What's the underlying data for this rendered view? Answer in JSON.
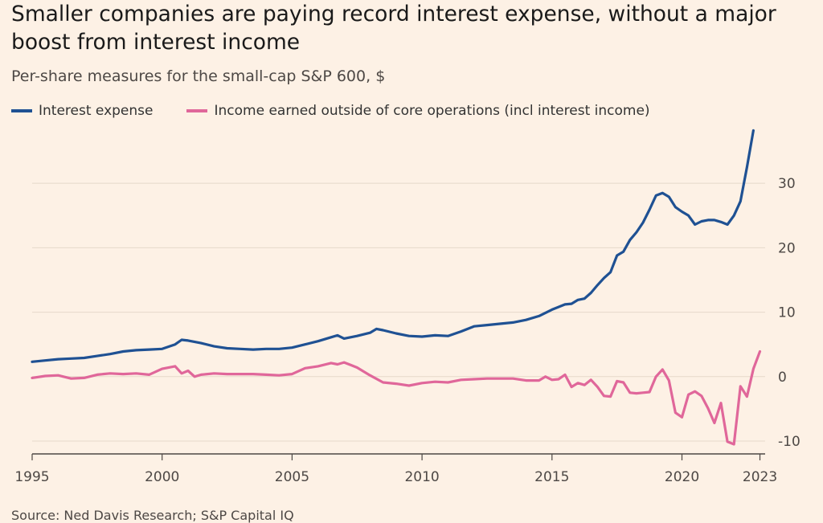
{
  "header": {
    "title": "Smaller companies are paying record interest expense, without a major boost from interest income",
    "subtitle": "Per-share measures for the small-cap S&P 600, $"
  },
  "footer": {
    "source": "Source: Ned Davis Research; S&P Capital IQ"
  },
  "colors": {
    "background": "#fdf1e5",
    "interest_expense": "#1f5193",
    "other_income": "#e0679a",
    "grid": "#e6d9ca",
    "axis": "#4d4845"
  },
  "chart_data": {
    "type": "line",
    "title": "Smaller companies are paying record interest expense, without a major boost from interest income",
    "subtitle": "Per-share measures for the small-cap S&P 600, $",
    "xlabel": "",
    "ylabel": "",
    "xlim": [
      1995,
      2023.2
    ],
    "ylim": [
      -12,
      38.5
    ],
    "yticks": [
      -10,
      0,
      10,
      20,
      30
    ],
    "xticks": [
      "1995",
      "2000",
      "2005",
      "2010",
      "2015",
      "2020",
      "2023"
    ],
    "grid": true,
    "legend_position": "top-left",
    "series": [
      {
        "name": "Interest expense",
        "color": "#1f5193",
        "x": [
          1995.0,
          1995.5,
          1996.0,
          1996.5,
          1997.0,
          1997.5,
          1998.0,
          1998.5,
          1999.0,
          1999.5,
          2000.0,
          2000.5,
          2000.75,
          2001.0,
          2001.5,
          2002.0,
          2002.5,
          2003.0,
          2003.5,
          2004.0,
          2004.5,
          2005.0,
          2005.5,
          2006.0,
          2006.5,
          2006.75,
          2007.0,
          2007.5,
          2008.0,
          2008.25,
          2008.5,
          2009.0,
          2009.5,
          2010.0,
          2010.5,
          2011.0,
          2011.5,
          2012.0,
          2012.5,
          2013.0,
          2013.5,
          2014.0,
          2014.5,
          2015.0,
          2015.5,
          2015.75,
          2016.0,
          2016.25,
          2016.5,
          2016.75,
          2017.0,
          2017.25,
          2017.5,
          2017.75,
          2018.0,
          2018.25,
          2018.5,
          2018.75,
          2019.0,
          2019.25,
          2019.5,
          2019.75,
          2020.0,
          2020.25,
          2020.5,
          2020.75,
          2021.0,
          2021.25,
          2021.5,
          2021.75,
          2022.0,
          2022.25,
          2022.5,
          2022.75,
          2023.0,
          2023.25
        ],
        "values": [
          2.3,
          2.5,
          2.7,
          2.8,
          2.9,
          3.2,
          3.5,
          3.9,
          4.1,
          4.2,
          4.3,
          5.0,
          5.7,
          5.6,
          5.2,
          4.7,
          4.4,
          4.3,
          4.2,
          4.3,
          4.3,
          4.5,
          5.0,
          5.5,
          6.1,
          6.4,
          5.9,
          6.3,
          6.8,
          7.4,
          7.2,
          6.7,
          6.3,
          6.2,
          6.4,
          6.3,
          7.0,
          7.8,
          8.0,
          8.2,
          8.4,
          8.8,
          9.4,
          10.4,
          11.2,
          11.3,
          11.9,
          12.1,
          13.0,
          14.2,
          15.3,
          16.2,
          18.8,
          19.4,
          21.2,
          22.4,
          23.9,
          25.9,
          28.1,
          28.5,
          27.9,
          26.3,
          25.6,
          25.0,
          23.6,
          24.1,
          24.3,
          24.3,
          24.0,
          23.6,
          25.0,
          27.2,
          32.5,
          38.2,
          null,
          null
        ]
      },
      {
        "name": "Income earned outside of core operations (incl interest income)",
        "color": "#e0679a",
        "x": [
          1995.0,
          1995.5,
          1996.0,
          1996.5,
          1997.0,
          1997.5,
          1998.0,
          1998.5,
          1999.0,
          1999.5,
          2000.0,
          2000.5,
          2000.75,
          2001.0,
          2001.25,
          2001.5,
          2002.0,
          2002.5,
          2003.0,
          2003.5,
          2004.0,
          2004.5,
          2005.0,
          2005.5,
          2006.0,
          2006.5,
          2006.75,
          2007.0,
          2007.25,
          2007.5,
          2008.0,
          2008.5,
          2009.0,
          2009.5,
          2010.0,
          2010.5,
          2011.0,
          2011.5,
          2012.0,
          2012.5,
          2013.0,
          2013.5,
          2014.0,
          2014.5,
          2014.75,
          2015.0,
          2015.25,
          2015.5,
          2015.75,
          2016.0,
          2016.25,
          2016.5,
          2016.75,
          2017.0,
          2017.25,
          2017.5,
          2017.75,
          2018.0,
          2018.25,
          2018.5,
          2018.75,
          2019.0,
          2019.25,
          2019.5,
          2019.75,
          2020.0,
          2020.25,
          2020.5,
          2020.75,
          2021.0,
          2021.25,
          2021.5,
          2021.75,
          2022.0,
          2022.25,
          2022.5,
          2022.75,
          2023.0
        ],
        "values": [
          -0.2,
          0.1,
          0.2,
          -0.3,
          -0.2,
          0.3,
          0.5,
          0.4,
          0.5,
          0.3,
          1.2,
          1.6,
          0.5,
          0.9,
          0.0,
          0.3,
          0.5,
          0.4,
          0.4,
          0.4,
          0.3,
          0.2,
          0.4,
          1.3,
          1.6,
          2.1,
          1.9,
          2.2,
          1.8,
          1.4,
          0.2,
          -0.9,
          -1.1,
          -1.4,
          -1.0,
          -0.8,
          -0.9,
          -0.5,
          -0.4,
          -0.3,
          -0.3,
          -0.3,
          -0.6,
          -0.6,
          0.0,
          -0.5,
          -0.4,
          0.3,
          -1.6,
          -1.0,
          -1.3,
          -0.5,
          -1.6,
          -3.0,
          -3.1,
          -0.7,
          -0.9,
          -2.5,
          -2.6,
          -2.5,
          -2.4,
          0.0,
          1.1,
          -0.6,
          -5.6,
          -6.3,
          -2.8,
          -2.3,
          -3.0,
          -4.9,
          -7.2,
          -4.1,
          -10.1,
          -10.5,
          -1.5,
          -3.1,
          1.2,
          3.9
        ]
      }
    ]
  }
}
